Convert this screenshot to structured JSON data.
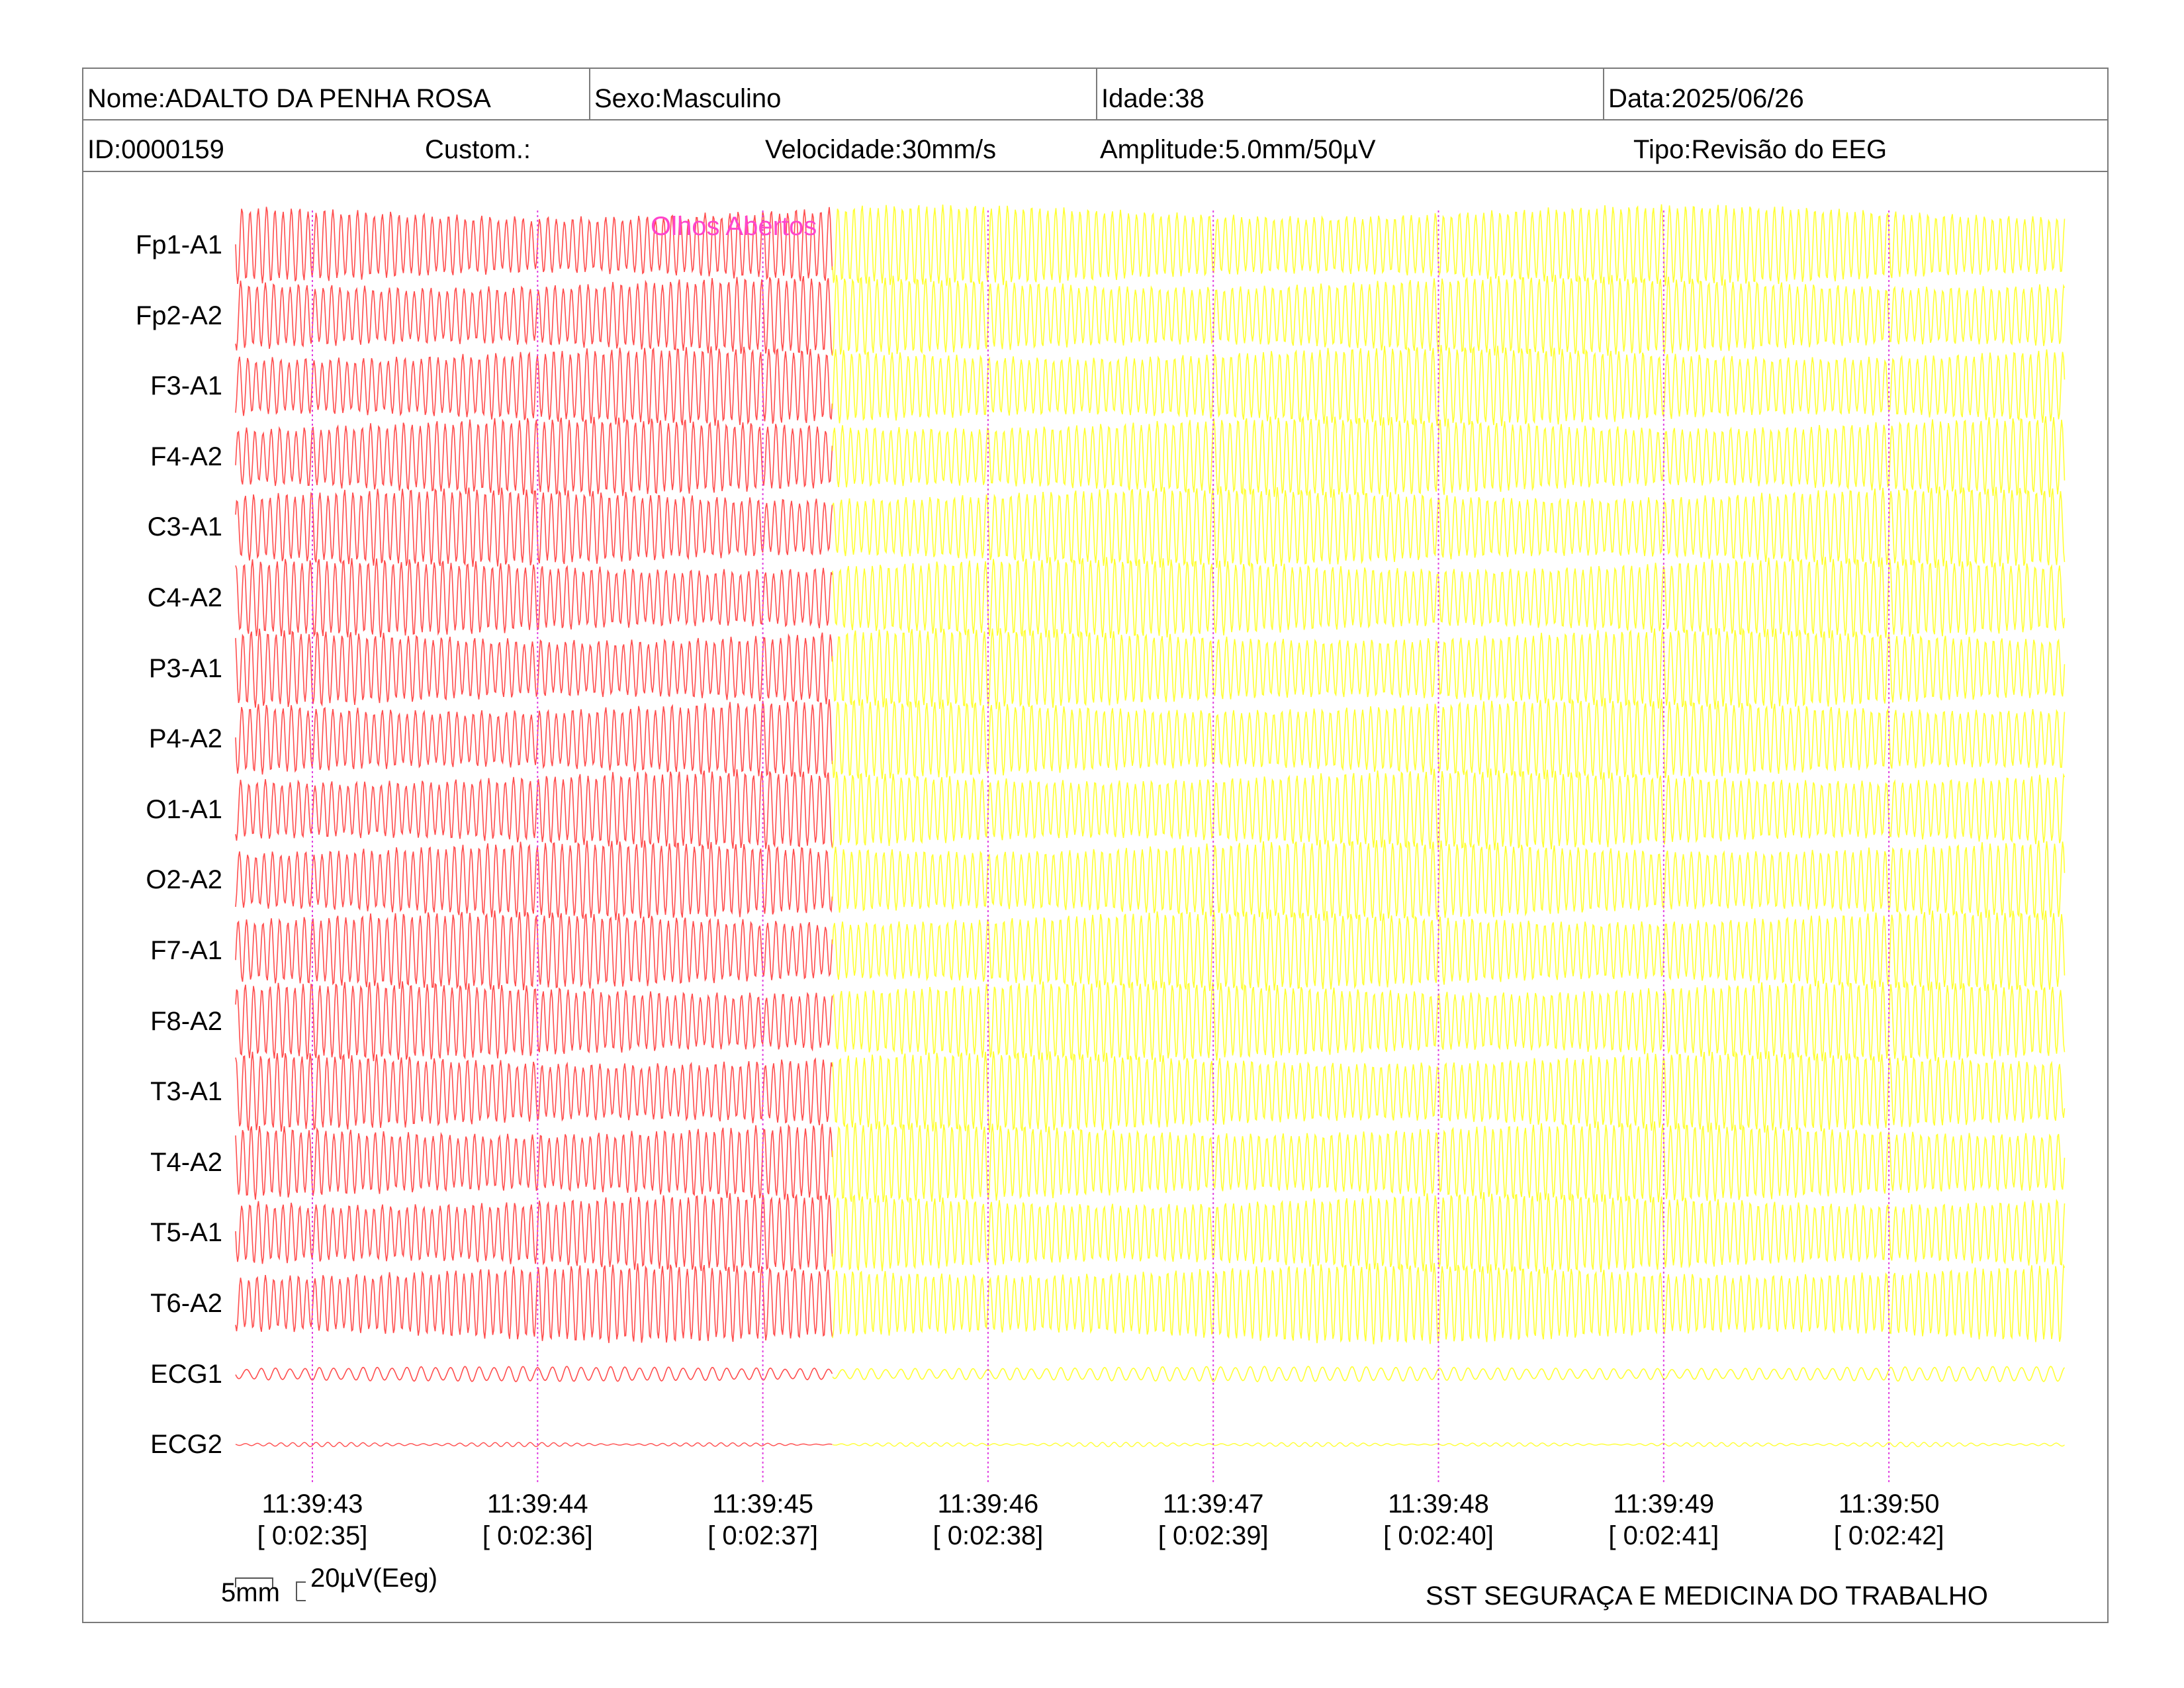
{
  "header": {
    "nome": "Nome:ADALTO DA PENHA ROSA",
    "sexo": "Sexo:Masculino",
    "idade": "Idade:38",
    "data": "Data:2025/06/26",
    "id": "ID:0000159",
    "custom": "Custom.:",
    "velocidade": "Velocidade:30mm/s",
    "amplitude": "Amplitude:5.0mm/50µV",
    "tipo": "Tipo:Revisão do EEG"
  },
  "annotation": {
    "text": "Olhos Abertos",
    "color": "#ff44cc"
  },
  "channels": [
    "Fp1-A1",
    "Fp2-A2",
    "F3-A1",
    "F4-A2",
    "C3-A1",
    "C4-A2",
    "P3-A1",
    "P4-A2",
    "O1-A1",
    "O2-A2",
    "F7-A1",
    "F8-A2",
    "T3-A1",
    "T4-A2",
    "T5-A1",
    "T6-A2",
    "ECG1",
    "ECG2"
  ],
  "time_marks": [
    {
      "clock": "11:39:43",
      "elapsed": "[ 0:02:35]"
    },
    {
      "clock": "11:39:44",
      "elapsed": "[ 0:02:36]"
    },
    {
      "clock": "11:39:45",
      "elapsed": "[ 0:02:37]"
    },
    {
      "clock": "11:39:46",
      "elapsed": "[ 0:02:38]"
    },
    {
      "clock": "11:39:47",
      "elapsed": "[ 0:02:39]"
    },
    {
      "clock": "11:39:48",
      "elapsed": "[ 0:02:40]"
    },
    {
      "clock": "11:39:49",
      "elapsed": "[ 0:02:41]"
    },
    {
      "clock": "11:39:50",
      "elapsed": "[ 0:02:42]"
    }
  ],
  "scale": {
    "time": "5mm",
    "amplitude": "20µV(Eeg)"
  },
  "footer": "SST SEGURAÇA E MEDICINA DO TRABALHO",
  "colors": {
    "segment_before": "#ff4d4d",
    "segment_after": "#ffff33",
    "marker_line": "#e040e0",
    "border": "#7a7a7a"
  }
}
